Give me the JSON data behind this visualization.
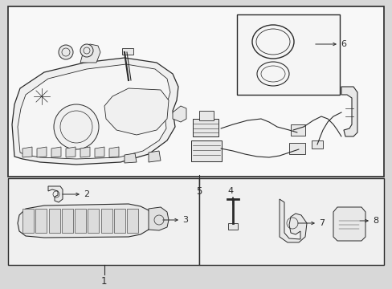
{
  "bg": "#d8d8d8",
  "wh": "#f0f0f0",
  "lc": "#2a2a2a",
  "lw": 0.8,
  "fig_w": 4.89,
  "fig_h": 3.6,
  "dpi": 100
}
